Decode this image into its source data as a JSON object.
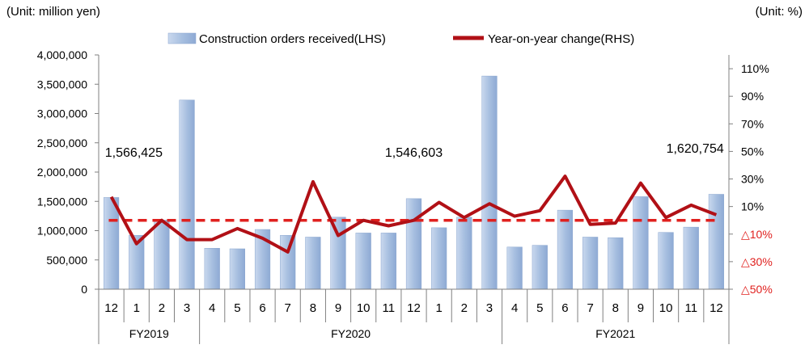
{
  "chart_data": {
    "type": "bar+line",
    "unit_left": "(Unit: million yen)",
    "unit_right": "(Unit: %)",
    "legend": {
      "bar": "Construction orders received(LHS)",
      "line": "Year-on-year change(RHS)",
      "placement": "top-center"
    },
    "months": [
      "12",
      "1",
      "2",
      "3",
      "4",
      "5",
      "6",
      "7",
      "8",
      "9",
      "10",
      "11",
      "12",
      "1",
      "2",
      "3",
      "4",
      "5",
      "6",
      "7",
      "8",
      "9",
      "10",
      "11",
      "12"
    ],
    "fiscal_years": [
      {
        "label": "FY2019",
        "start": 0,
        "end": 3
      },
      {
        "label": "FY2020",
        "start": 4,
        "end": 15
      },
      {
        "label": "FY2021",
        "start": 16,
        "end": 24
      }
    ],
    "bar_values": [
      1566425,
      920000,
      1180000,
      3230000,
      700000,
      690000,
      1020000,
      920000,
      890000,
      1230000,
      960000,
      960000,
      1546603,
      1050000,
      1230000,
      3640000,
      720000,
      750000,
      1350000,
      890000,
      880000,
      1580000,
      970000,
      1060000,
      1620754
    ],
    "line_values": [
      17,
      -17,
      0,
      -14,
      -14,
      -6,
      -13,
      -23,
      28,
      -11,
      0,
      -4,
      0,
      13,
      2,
      12,
      3,
      7,
      32,
      -3,
      -2,
      27,
      2,
      11,
      4
    ],
    "left_axis": {
      "min": 0,
      "max": 4000000,
      "step": 500000,
      "tick_labels": [
        "0",
        "500,000",
        "1,000,000",
        "1,500,000",
        "2,000,000",
        "2,500,000",
        "3,000,000",
        "3,500,000",
        "4,000,000"
      ]
    },
    "right_axis": {
      "min": -50,
      "max": 120,
      "ticks": [
        -50,
        -30,
        -10,
        10,
        30,
        50,
        70,
        90,
        110
      ],
      "tick_labels": [
        "△50%",
        "△30%",
        "△10%",
        "10%",
        "30%",
        "50%",
        "70%",
        "90%",
        "110%"
      ]
    },
    "reference_line": {
      "value": 0,
      "style": "dashed",
      "color": "#e0201e"
    },
    "annotations": [
      {
        "index": 0,
        "text": "1,566,425"
      },
      {
        "index": 12,
        "text": "1,546,603"
      },
      {
        "index": 24,
        "text": "1,620,754"
      }
    ],
    "colors": {
      "bar": "#a9c1e0",
      "bar_edge": "#7a9cc9",
      "line": "#b11016",
      "ref": "#e0201e",
      "negative_label": "#e0201e"
    }
  }
}
